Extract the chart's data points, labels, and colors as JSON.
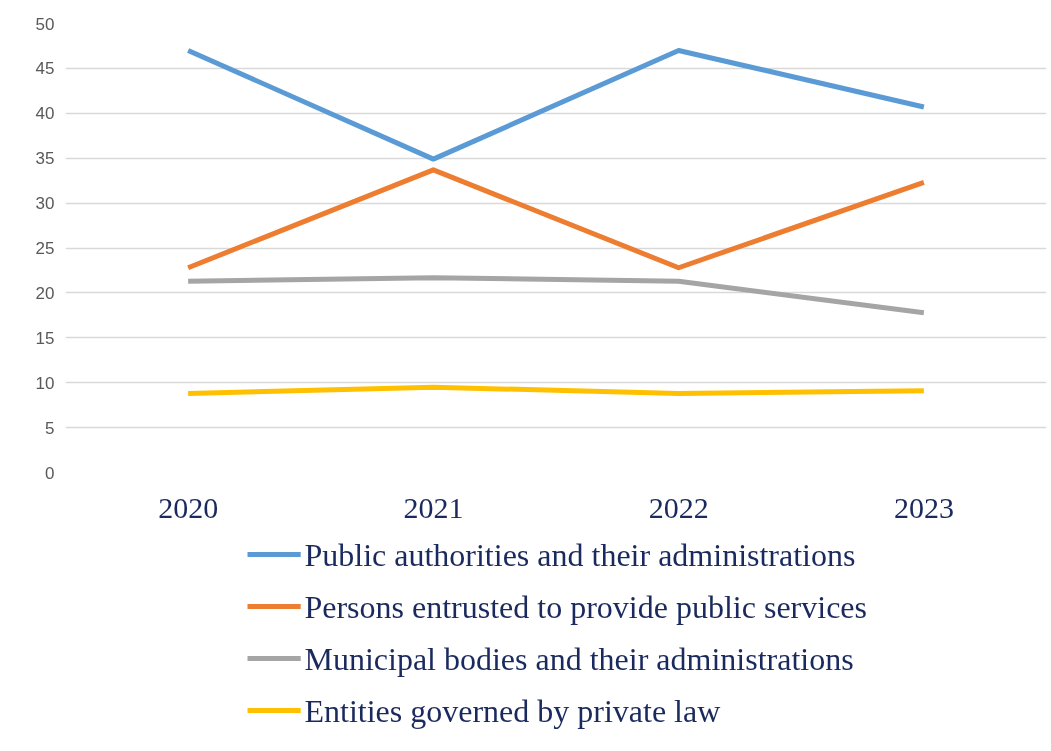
{
  "chart_data": {
    "type": "line",
    "categories": [
      "2020",
      "2021",
      "2022",
      "2023"
    ],
    "series": [
      {
        "name": "Public authorities and their administrations",
        "color": "#5b9bd5",
        "values": [
          47.0,
          34.9,
          47.0,
          40.7
        ]
      },
      {
        "name": "Persons entrusted to provide public services",
        "color": "#ed7d31",
        "values": [
          22.8,
          33.7,
          22.8,
          32.3
        ]
      },
      {
        "name": "Municipal bodies and their administrations",
        "color": "#a5a5a5",
        "values": [
          21.3,
          21.7,
          21.3,
          17.8
        ]
      },
      {
        "name": "Entities governed by private law",
        "color": "#ffc000",
        "values": [
          8.8,
          9.5,
          8.8,
          9.1
        ]
      }
    ],
    "ylim": [
      0,
      50
    ],
    "yticks": [
      0,
      5,
      10,
      15,
      20,
      25,
      30,
      35,
      40,
      45,
      50
    ],
    "grid": "y",
    "legend": "bottom",
    "line_style": "solid"
  }
}
